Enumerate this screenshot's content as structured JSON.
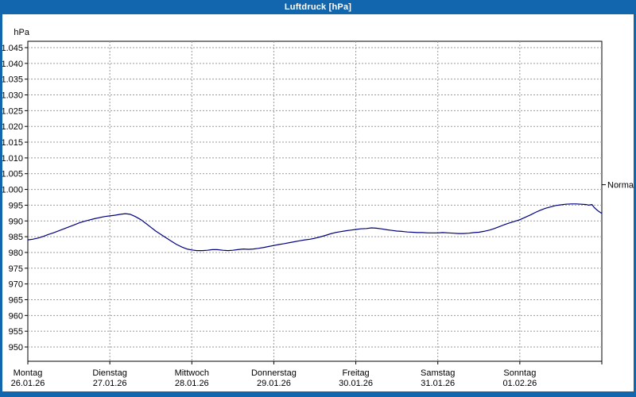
{
  "window": {
    "title": "Luftdruck [hPa]"
  },
  "colors": {
    "titlebar": "#1166ad",
    "line": "#000080",
    "grid": "#9a9a9a",
    "plot_border": "#000000",
    "text": "#000000"
  },
  "chart_data": {
    "type": "line",
    "title": "Luftdruck [hPa]",
    "ylabel": "hPa",
    "ylim": [
      945,
      1048
    ],
    "grid": "dashed",
    "legend_position": "none",
    "y_ticks": [
      {
        "value": 1045,
        "label": "1.045"
      },
      {
        "value": 1040,
        "label": "1.040"
      },
      {
        "value": 1035,
        "label": "1.035"
      },
      {
        "value": 1030,
        "label": "1.030"
      },
      {
        "value": 1025,
        "label": "1.025"
      },
      {
        "value": 1020,
        "label": "1.020"
      },
      {
        "value": 1015,
        "label": "1.015"
      },
      {
        "value": 1010,
        "label": "1.010"
      },
      {
        "value": 1005,
        "label": "1.005"
      },
      {
        "value": 1000,
        "label": "1.000"
      },
      {
        "value": 995,
        "label": "995"
      },
      {
        "value": 990,
        "label": "990"
      },
      {
        "value": 985,
        "label": "985"
      },
      {
        "value": 980,
        "label": "980"
      },
      {
        "value": 975,
        "label": "975"
      },
      {
        "value": 970,
        "label": "970"
      },
      {
        "value": 965,
        "label": "965"
      },
      {
        "value": 960,
        "label": "960"
      },
      {
        "value": 955,
        "label": "955"
      },
      {
        "value": 950,
        "label": "950"
      }
    ],
    "x_days": [
      {
        "name": "Montag",
        "date": "26.01.26",
        "t": 0
      },
      {
        "name": "Dienstag",
        "date": "27.01.26",
        "t": 1
      },
      {
        "name": "Mittwoch",
        "date": "28.01.26",
        "t": 2
      },
      {
        "name": "Donnerstag",
        "date": "29.01.26",
        "t": 3
      },
      {
        "name": "Freitag",
        "date": "30.01.26",
        "t": 4
      },
      {
        "name": "Samstag",
        "date": "31.01.26",
        "t": 5
      },
      {
        "name": "Sonntag",
        "date": "01.02.26",
        "t": 6
      }
    ],
    "x_range_days": [
      0,
      7
    ],
    "normal_marker": {
      "label": "Normal",
      "value": 1001.5
    },
    "series": [
      {
        "name": "Luftdruck",
        "color": "#000080",
        "points": [
          [
            0.0,
            984.0
          ],
          [
            0.06,
            984.2
          ],
          [
            0.13,
            984.6
          ],
          [
            0.19,
            985.1
          ],
          [
            0.25,
            985.7
          ],
          [
            0.31,
            986.2
          ],
          [
            0.38,
            986.9
          ],
          [
            0.44,
            987.5
          ],
          [
            0.5,
            988.1
          ],
          [
            0.56,
            988.7
          ],
          [
            0.63,
            989.4
          ],
          [
            0.69,
            989.9
          ],
          [
            0.75,
            990.3
          ],
          [
            0.81,
            990.7
          ],
          [
            0.88,
            991.1
          ],
          [
            0.94,
            991.4
          ],
          [
            1.0,
            991.6
          ],
          [
            1.06,
            991.8
          ],
          [
            1.13,
            992.1
          ],
          [
            1.19,
            992.3
          ],
          [
            1.25,
            992.1
          ],
          [
            1.31,
            991.4
          ],
          [
            1.38,
            990.4
          ],
          [
            1.44,
            989.2
          ],
          [
            1.5,
            988.0
          ],
          [
            1.56,
            986.8
          ],
          [
            1.63,
            985.6
          ],
          [
            1.69,
            984.6
          ],
          [
            1.75,
            983.6
          ],
          [
            1.81,
            982.6
          ],
          [
            1.88,
            981.7
          ],
          [
            1.94,
            981.1
          ],
          [
            2.0,
            980.8
          ],
          [
            2.06,
            980.6
          ],
          [
            2.13,
            980.6
          ],
          [
            2.19,
            980.7
          ],
          [
            2.25,
            980.9
          ],
          [
            2.31,
            980.9
          ],
          [
            2.38,
            980.7
          ],
          [
            2.44,
            980.6
          ],
          [
            2.5,
            980.7
          ],
          [
            2.56,
            980.9
          ],
          [
            2.63,
            981.1
          ],
          [
            2.69,
            981.0
          ],
          [
            2.75,
            981.1
          ],
          [
            2.81,
            981.3
          ],
          [
            2.88,
            981.6
          ],
          [
            2.94,
            981.9
          ],
          [
            3.0,
            982.2
          ],
          [
            3.06,
            982.5
          ],
          [
            3.13,
            982.8
          ],
          [
            3.19,
            983.1
          ],
          [
            3.25,
            983.4
          ],
          [
            3.31,
            983.7
          ],
          [
            3.38,
            984.0
          ],
          [
            3.44,
            984.2
          ],
          [
            3.5,
            984.5
          ],
          [
            3.56,
            984.9
          ],
          [
            3.63,
            985.4
          ],
          [
            3.69,
            985.9
          ],
          [
            3.75,
            986.3
          ],
          [
            3.81,
            986.6
          ],
          [
            3.88,
            986.9
          ],
          [
            3.94,
            987.1
          ],
          [
            4.0,
            987.3
          ],
          [
            4.06,
            987.5
          ],
          [
            4.13,
            987.6
          ],
          [
            4.19,
            987.8
          ],
          [
            4.25,
            987.7
          ],
          [
            4.31,
            987.5
          ],
          [
            4.38,
            987.2
          ],
          [
            4.44,
            987.0
          ],
          [
            4.5,
            986.8
          ],
          [
            4.56,
            986.7
          ],
          [
            4.63,
            986.5
          ],
          [
            4.69,
            986.4
          ],
          [
            4.75,
            986.3
          ],
          [
            4.81,
            986.3
          ],
          [
            4.88,
            986.2
          ],
          [
            4.94,
            986.2
          ],
          [
            5.0,
            986.2
          ],
          [
            5.06,
            986.3
          ],
          [
            5.13,
            986.2
          ],
          [
            5.19,
            986.1
          ],
          [
            5.25,
            986.0
          ],
          [
            5.31,
            986.0
          ],
          [
            5.38,
            986.1
          ],
          [
            5.44,
            986.3
          ],
          [
            5.5,
            986.4
          ],
          [
            5.56,
            986.7
          ],
          [
            5.63,
            987.1
          ],
          [
            5.69,
            987.6
          ],
          [
            5.75,
            988.2
          ],
          [
            5.81,
            988.8
          ],
          [
            5.88,
            989.4
          ],
          [
            5.94,
            989.9
          ],
          [
            6.0,
            990.4
          ],
          [
            6.06,
            991.1
          ],
          [
            6.13,
            991.9
          ],
          [
            6.19,
            992.7
          ],
          [
            6.25,
            993.4
          ],
          [
            6.31,
            994.0
          ],
          [
            6.38,
            994.5
          ],
          [
            6.44,
            994.9
          ],
          [
            6.5,
            995.1
          ],
          [
            6.56,
            995.3
          ],
          [
            6.63,
            995.4
          ],
          [
            6.69,
            995.4
          ],
          [
            6.75,
            995.3
          ],
          [
            6.81,
            995.2
          ],
          [
            6.84,
            995.0
          ],
          [
            6.88,
            995.2
          ],
          [
            6.91,
            994.2
          ],
          [
            6.94,
            993.5
          ],
          [
            6.97,
            992.9
          ],
          [
            7.0,
            992.4
          ]
        ]
      }
    ]
  }
}
